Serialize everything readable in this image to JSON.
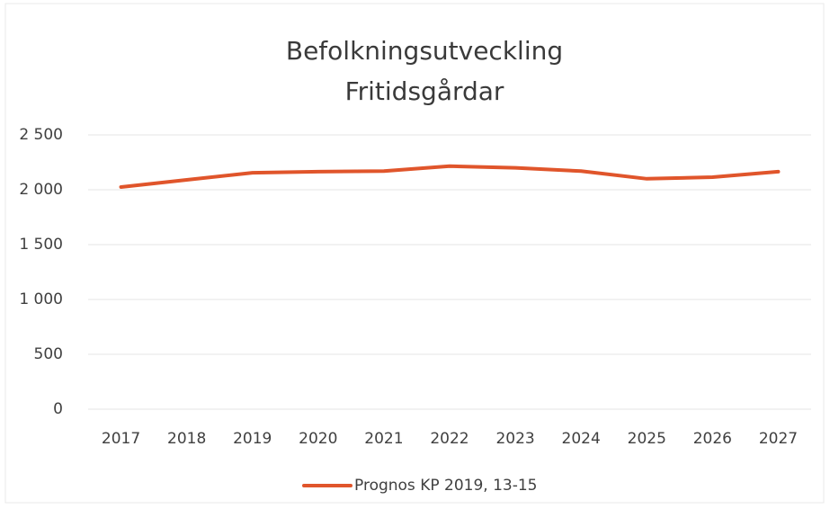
{
  "chart_data": {
    "type": "line",
    "title": [
      "Befolkningsutveckling",
      "Fritidsgårdar"
    ],
    "categories": [
      "2017",
      "2018",
      "2019",
      "2020",
      "2021",
      "2022",
      "2023",
      "2024",
      "2025",
      "2026",
      "2027"
    ],
    "series": [
      {
        "name": "Prognos KP 2019, 13-15",
        "color": "#e0552b",
        "values": [
          2025,
          2090,
          2155,
          2165,
          2170,
          2215,
          2200,
          2170,
          2100,
          2115,
          2165
        ]
      }
    ],
    "ylim": [
      0,
      2500
    ],
    "yticks": [
      0,
      500,
      {
        "value": 1000,
        "label": "1 000"
      },
      {
        "value": 1500,
        "label": "1 500"
      },
      {
        "value": 2000,
        "label": "2 000"
      },
      {
        "value": 2500,
        "label": "2 500"
      }
    ],
    "grid": true,
    "legend": "bottom"
  }
}
